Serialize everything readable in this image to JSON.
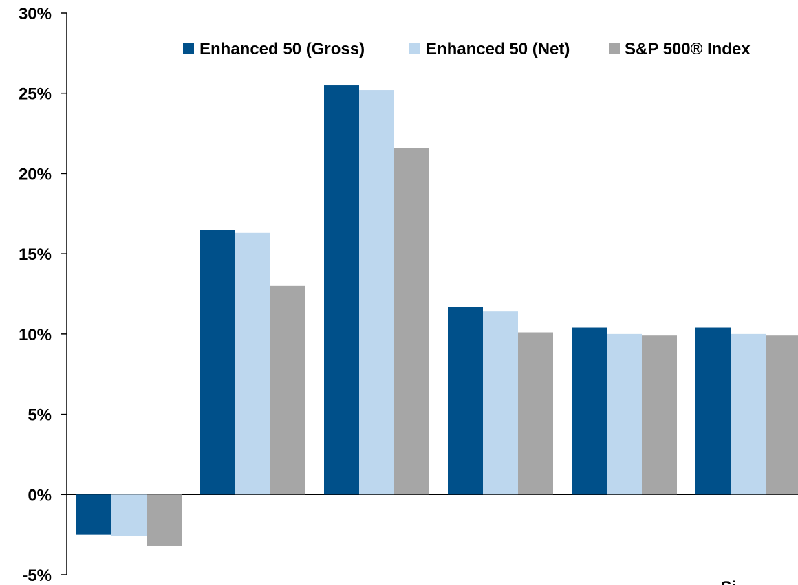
{
  "chart_data": {
    "type": "bar",
    "title": "",
    "xlabel": "",
    "ylabel": "",
    "categories": [
      "",
      "",
      "",
      "",
      "",
      "Si"
    ],
    "series": [
      {
        "name": "Enhanced 50 (Gross)",
        "color": "#00508a",
        "values": [
          -2.5,
          16.5,
          25.5,
          11.7,
          10.4,
          10.4
        ]
      },
      {
        "name": "Enhanced 50 (Net)",
        "color": "#bdd7ee",
        "values": [
          -2.6,
          16.3,
          25.2,
          11.4,
          10.0,
          10.0
        ]
      },
      {
        "name": "S&P 500® Index",
        "color": "#a6a6a6",
        "values": [
          -3.2,
          13.0,
          21.6,
          10.1,
          9.9,
          9.9
        ]
      }
    ],
    "yticks": [
      {
        "value": 30,
        "label": "30%"
      },
      {
        "value": 25,
        "label": "25%"
      },
      {
        "value": 20,
        "label": "20%"
      },
      {
        "value": 15,
        "label": "15%"
      },
      {
        "value": 10,
        "label": "10%"
      },
      {
        "value": 5,
        "label": "5%"
      },
      {
        "value": 0,
        "label": "0%"
      },
      {
        "value": -5,
        "label": "-5%"
      }
    ],
    "ylim": [
      -5,
      30
    ],
    "grid": false,
    "legend_position": "top-right"
  }
}
